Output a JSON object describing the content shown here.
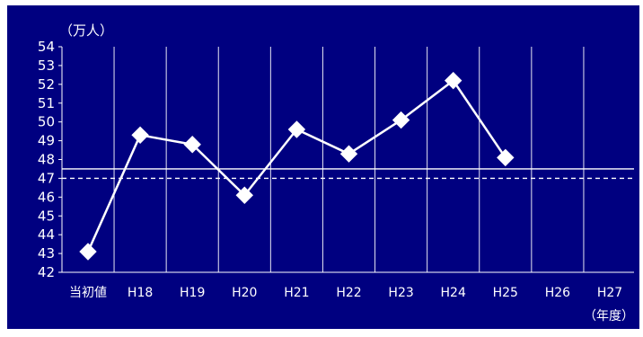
{
  "chart_data": {
    "type": "line",
    "ylabel": "（万人）",
    "xlabel": "（年度）",
    "categories": [
      "当初値",
      "H18",
      "H19",
      "H20",
      "H21",
      "H22",
      "H23",
      "H24",
      "H25",
      "H26",
      "H27"
    ],
    "series": [
      {
        "values": [
          43.1,
          49.3,
          48.8,
          46.1,
          49.6,
          48.3,
          50.1,
          52.2,
          48.1,
          null,
          null
        ]
      }
    ],
    "reference_lines": [
      {
        "value": 47.5,
        "style": "solid"
      },
      {
        "value": 47.0,
        "style": "dashed"
      }
    ],
    "yticks": [
      42,
      43,
      44,
      45,
      46,
      47,
      48,
      49,
      50,
      51,
      52,
      53,
      54
    ],
    "ylim": [
      42,
      54
    ],
    "grid": "vertical",
    "colors": {
      "background": "#000080",
      "line": "#ffffff"
    }
  }
}
